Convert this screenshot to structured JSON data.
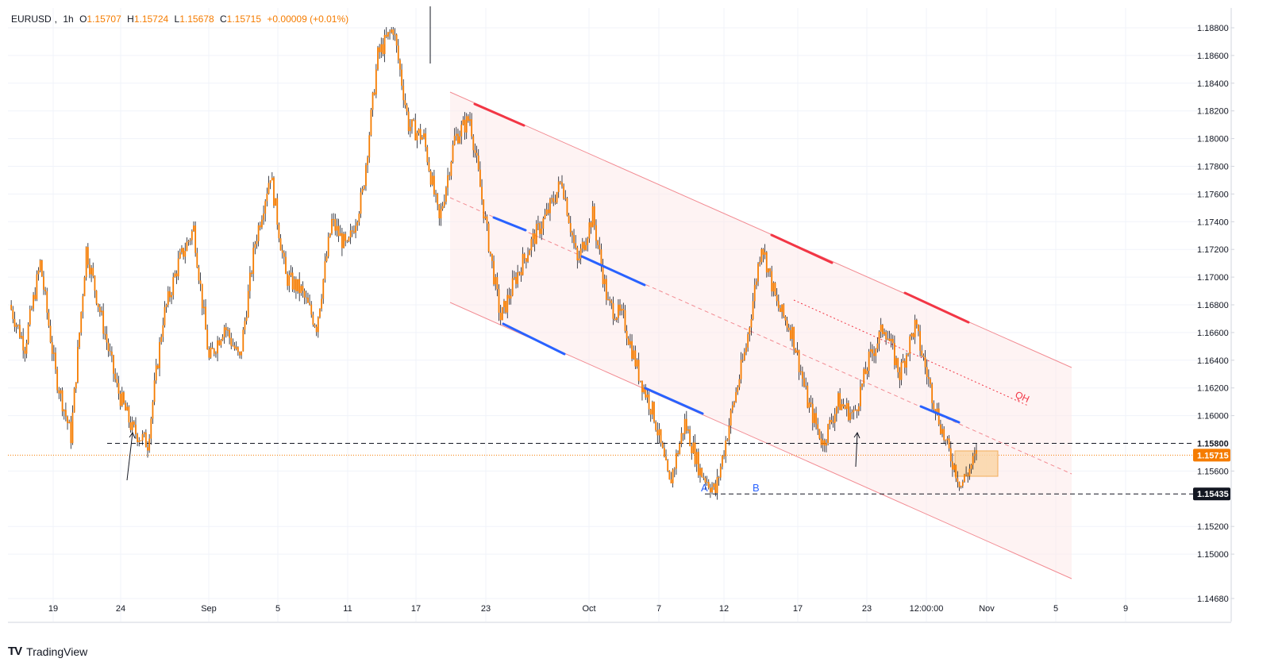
{
  "legend": {
    "symbol": "EURUSD",
    "interval": "1h",
    "o_label": "O",
    "o": "1.15707",
    "h_label": "H",
    "h": "1.15724",
    "l_label": "L",
    "l": "1.15678",
    "c_label": "C",
    "c": "1.15715",
    "change": "+0.00009 (+0.01%)"
  },
  "brand": "TradingView",
  "colors": {
    "candle": "#f57c00",
    "wick": "#131722",
    "channel": "#f28b92",
    "channel_fill": "#fde9e9",
    "resistance": "#f23645",
    "support": "#2962ff",
    "label_blue": "#2962ff",
    "label_red": "#f23645",
    "price_tag": "#f57c00",
    "level_tag": "#131722",
    "zone_fill": "#fbd6a8",
    "zone_border": "#f2a03d"
  },
  "chart_data": {
    "type": "candlestick",
    "symbol": "EURUSD",
    "interval": "1h",
    "y_axis": {
      "range": [
        1.146,
        1.1895
      ],
      "ticks": [
        "1.18800",
        "1.18600",
        "1.18400",
        "1.18200",
        "1.18000",
        "1.17800",
        "1.17600",
        "1.17400",
        "1.17200",
        "1.17000",
        "1.16800",
        "1.16600",
        "1.16400",
        "1.16200",
        "1.16000",
        "1.15600",
        "1.15200",
        "1.15000",
        "1.14680"
      ]
    },
    "x_axis": {
      "ticks": [
        "19",
        "24",
        "Sep",
        "5",
        "11",
        "17",
        "23",
        "Oct",
        "7",
        "12",
        "17",
        "23",
        "12:00:00",
        "Nov",
        "5",
        "9"
      ],
      "crosshair_label": "12:00:00"
    },
    "price_path": [
      {
        "date": "Aug 18",
        "close": 1.168
      },
      {
        "date": "Aug 19",
        "close": 1.165
      },
      {
        "date": "Aug 20",
        "close": 1.171
      },
      {
        "date": "Aug 21",
        "close": 1.163
      },
      {
        "date": "Aug 22",
        "close": 1.1585
      },
      {
        "date": "Aug 22",
        "close": 1.172
      },
      {
        "date": "Aug 25",
        "close": 1.167
      },
      {
        "date": "Aug 26",
        "close": 1.162
      },
      {
        "date": "Aug 27",
        "close": 1.159
      },
      {
        "date": "Aug 27",
        "close": 1.158
      },
      {
        "date": "Aug 28",
        "close": 1.167
      },
      {
        "date": "Aug 29",
        "close": 1.171
      },
      {
        "date": "Sep 1",
        "close": 1.1735
      },
      {
        "date": "Sep 2",
        "close": 1.164
      },
      {
        "date": "Sep 3",
        "close": 1.1665
      },
      {
        "date": "Sep 4",
        "close": 1.164
      },
      {
        "date": "Sep 5",
        "close": 1.1725
      },
      {
        "date": "Sep 8",
        "close": 1.1775
      },
      {
        "date": "Sep 9",
        "close": 1.17
      },
      {
        "date": "Sep 10",
        "close": 1.169
      },
      {
        "date": "Sep 11",
        "close": 1.1665
      },
      {
        "date": "Sep 11",
        "close": 1.174
      },
      {
        "date": "Sep 12",
        "close": 1.172
      },
      {
        "date": "Sep 15",
        "close": 1.176
      },
      {
        "date": "Sep 16",
        "close": 1.186
      },
      {
        "date": "Sep 17",
        "close": 1.188
      },
      {
        "date": "Sep 17",
        "close": 1.181
      },
      {
        "date": "Sep 18",
        "close": 1.18
      },
      {
        "date": "Sep 19",
        "close": 1.174
      },
      {
        "date": "Sep 22",
        "close": 1.18
      },
      {
        "date": "Sep 23",
        "close": 1.1815
      },
      {
        "date": "Sep 24",
        "close": 1.174
      },
      {
        "date": "Sep 25",
        "close": 1.167
      },
      {
        "date": "Sep 26",
        "close": 1.17
      },
      {
        "date": "Sep 29",
        "close": 1.1725
      },
      {
        "date": "Sep 30",
        "close": 1.1745
      },
      {
        "date": "Oct 1",
        "close": 1.177
      },
      {
        "date": "Oct 2",
        "close": 1.171
      },
      {
        "date": "Oct 3",
        "close": 1.1745
      },
      {
        "date": "Oct 6",
        "close": 1.168
      },
      {
        "date": "Oct 7",
        "close": 1.167
      },
      {
        "date": "Oct 8",
        "close": 1.163
      },
      {
        "date": "Oct 9",
        "close": 1.16
      },
      {
        "date": "Oct 10",
        "close": 1.155
      },
      {
        "date": "Oct 10",
        "close": 1.1595
      },
      {
        "date": "Oct 13",
        "close": 1.156
      },
      {
        "date": "Oct 14",
        "close": 1.1545
      },
      {
        "date": "Oct 15",
        "close": 1.16
      },
      {
        "date": "Oct 16",
        "close": 1.165
      },
      {
        "date": "Oct 17",
        "close": 1.1725
      },
      {
        "date": "Oct 17",
        "close": 1.168
      },
      {
        "date": "Oct 20",
        "close": 1.166
      },
      {
        "date": "Oct 21",
        "close": 1.161
      },
      {
        "date": "Oct 22",
        "close": 1.158
      },
      {
        "date": "Oct 23",
        "close": 1.161
      },
      {
        "date": "Oct 24",
        "close": 1.16
      },
      {
        "date": "Oct 27",
        "close": 1.164
      },
      {
        "date": "Oct 28",
        "close": 1.1665
      },
      {
        "date": "Oct 28",
        "close": 1.163
      },
      {
        "date": "Oct 29",
        "close": 1.1665
      },
      {
        "date": "Oct 29",
        "close": 1.162
      },
      {
        "date": "Oct 30",
        "close": 1.158
      },
      {
        "date": "Oct 30",
        "close": 1.155
      },
      {
        "date": "Oct 31",
        "close": 1.1571
      }
    ],
    "last_price": "1.15715",
    "levels": [
      {
        "value": 1.158,
        "label": "1.15800"
      },
      {
        "value": 1.15435,
        "label": "1.15435"
      }
    ],
    "annotations": [
      "A",
      "B",
      "QH"
    ]
  }
}
